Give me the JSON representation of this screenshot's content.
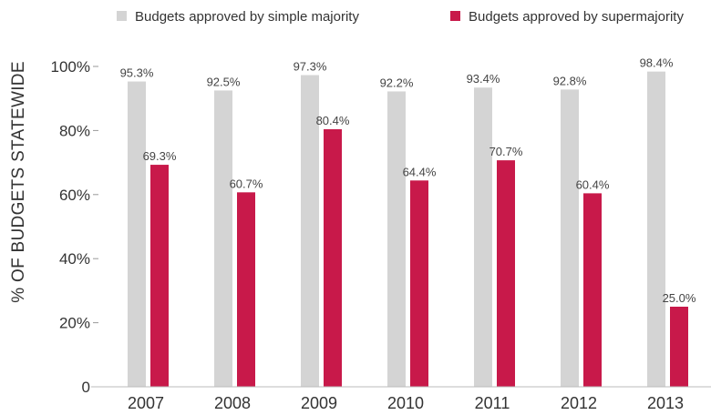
{
  "chart_data": {
    "type": "bar",
    "title": "",
    "xlabel": "",
    "ylabel": "% OF BUDGETS STATEWIDE",
    "categories": [
      "2007",
      "2008",
      "2009",
      "2010",
      "2011",
      "2012",
      "2013"
    ],
    "series": [
      {
        "name": "Budgets approved by simple majority",
        "color": "#d4d4d4",
        "values": [
          95.3,
          92.5,
          97.3,
          92.2,
          93.4,
          92.8,
          98.4
        ],
        "labels": [
          "95.3%",
          "92.5%",
          "97.3%",
          "92.2%",
          "93.4%",
          "92.8%",
          "98.4%"
        ]
      },
      {
        "name": "Budgets approved by supermajority",
        "color": "#c8194a",
        "values": [
          69.3,
          60.7,
          80.4,
          64.4,
          70.7,
          60.4,
          25.0
        ],
        "labels": [
          "69.3%",
          "60.7%",
          "80.4%",
          "64.4%",
          "70.7%",
          "60.4%",
          "25.0%"
        ]
      }
    ],
    "ylim": [
      0,
      100
    ],
    "yticks": [
      0,
      20,
      40,
      60,
      80,
      100
    ],
    "ytick_labels": [
      "0",
      "20%",
      "40%",
      "60%",
      "80%",
      "100%"
    ],
    "grid": false,
    "legend": "top"
  }
}
